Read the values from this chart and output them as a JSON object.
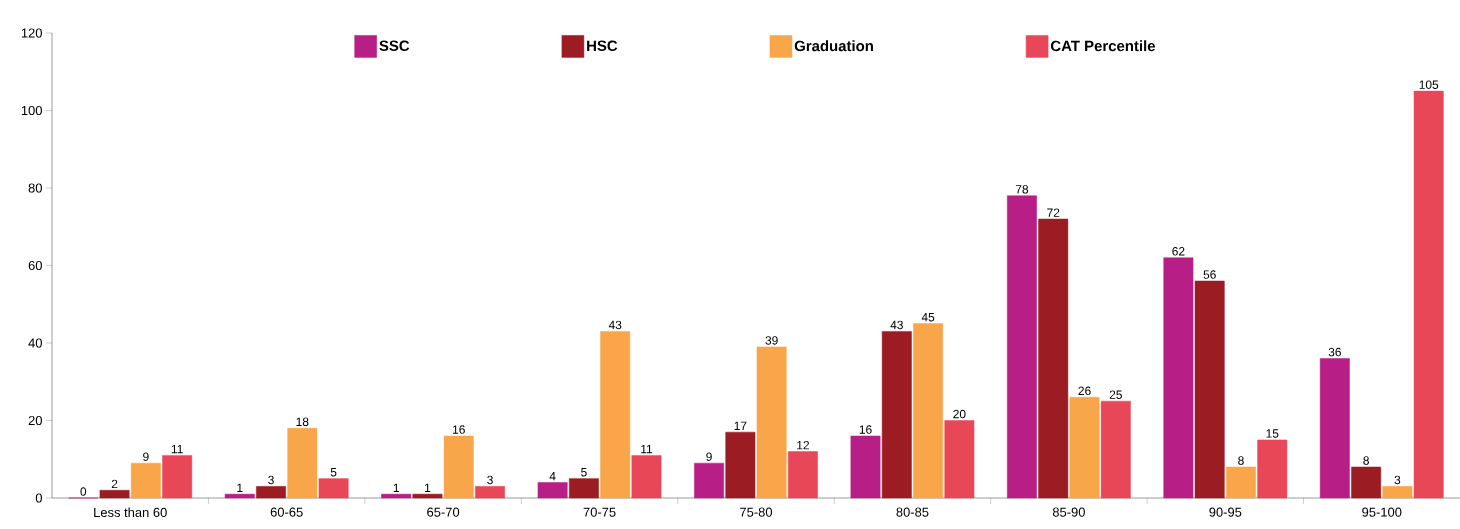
{
  "chart_data": {
    "type": "bar",
    "categories": [
      "Less than 60",
      "60-65",
      "65-70",
      "70-75",
      "75-80",
      "80-85",
      "85-90",
      "90-95",
      "95-100"
    ],
    "series": [
      {
        "name": "SSC",
        "color": "#b81f86",
        "values": [
          0,
          1,
          1,
          4,
          9,
          16,
          78,
          62,
          36
        ]
      },
      {
        "name": "HSC",
        "color": "#9b1c23",
        "values": [
          2,
          3,
          1,
          5,
          17,
          43,
          72,
          56,
          8
        ]
      },
      {
        "name": "Graduation",
        "color": "#f9a54a",
        "values": [
          9,
          18,
          16,
          43,
          39,
          45,
          26,
          8,
          3
        ]
      },
      {
        "name": "CAT Percentile",
        "color": "#e84757",
        "values": [
          11,
          5,
          3,
          11,
          12,
          20,
          25,
          15,
          105
        ]
      }
    ],
    "ylim": [
      0,
      120
    ],
    "yticks": [
      0,
      20,
      40,
      60,
      80,
      100,
      120
    ],
    "data_labels": true,
    "grid": false,
    "legend": "top"
  }
}
